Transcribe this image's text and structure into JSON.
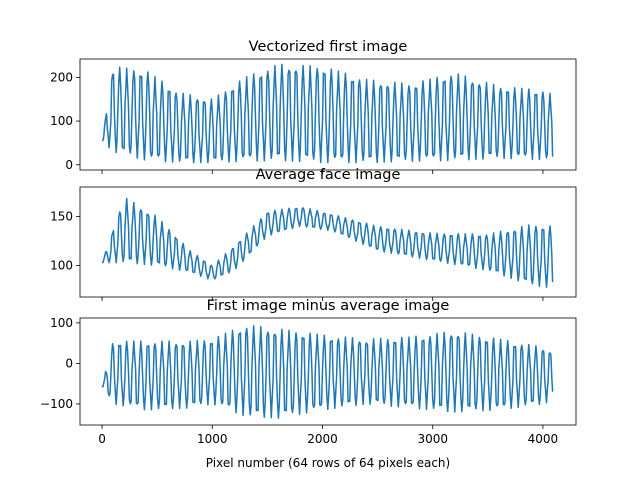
{
  "figure": {
    "xlabel": "Pixel number (64 rows of 64 pixels each)"
  },
  "chart_data": [
    {
      "type": "line",
      "title": "Vectorized first image",
      "xlabel": "",
      "ylabel": "",
      "xlim": [
        -200,
        4300
      ],
      "ylim": [
        -12,
        242
      ],
      "xticks": [
        0,
        1000,
        2000,
        3000,
        4000
      ],
      "yticks": [
        0,
        100,
        200
      ],
      "show_xticklabels": false,
      "grid": false,
      "color": "#1f77b4",
      "series": [
        {
          "x_start": 0,
          "x_end": 4095,
          "rows": 64,
          "period": 64,
          "min_env": {
            "x": [
              0,
              100,
              400,
              700,
              1000,
              1300,
              1600,
              2000,
              2400,
              2800,
              3200,
              3600,
              4000,
              4095
            ],
            "y": [
              55,
              30,
              10,
              5,
              5,
              8,
              10,
              5,
              5,
              8,
              10,
              15,
              12,
              8
            ]
          },
          "max_env": {
            "x": [
              0,
              100,
              400,
              700,
              1000,
              1300,
              1600,
              2000,
              2400,
              2800,
              3200,
              3600,
              4000,
              4095
            ],
            "y": [
              55,
              225,
              215,
              165,
              150,
              200,
              230,
              225,
              195,
              185,
              210,
              180,
              170,
              160
            ]
          }
        }
      ]
    },
    {
      "type": "line",
      "title": "Average face image",
      "xlabel": "",
      "ylabel": "",
      "xlim": [
        -200,
        4300
      ],
      "ylim": [
        68,
        180
      ],
      "xticks": [
        0,
        1000,
        2000,
        3000,
        4000
      ],
      "yticks": [
        100,
        150
      ],
      "show_xticklabels": false,
      "grid": false,
      "color": "#1f77b4",
      "series": [
        {
          "x_start": 0,
          "x_end": 4095,
          "rows": 64,
          "period": 64,
          "min_env": {
            "x": [
              0,
              200,
              500,
              800,
              1000,
              1200,
              1500,
              1800,
              2100,
              2500,
              3000,
              3500,
              3900,
              4095
            ],
            "y": [
              103,
              103,
              100,
              93,
              85,
              95,
              130,
              140,
              135,
              115,
              105,
              95,
              80,
              77
            ]
          },
          "max_env": {
            "x": [
              0,
              200,
              500,
              800,
              1000,
              1200,
              1500,
              1800,
              2100,
              2500,
              3000,
              3500,
              3900,
              4095
            ],
            "y": [
              103,
              170,
              150,
              115,
              100,
              120,
              155,
              160,
              152,
              140,
              133,
              132,
              142,
              140
            ]
          }
        }
      ]
    },
    {
      "type": "line",
      "title": "First image minus average image",
      "xlabel": "Pixel number (64 rows of 64 pixels each)",
      "ylabel": "",
      "xlim": [
        -200,
        4300
      ],
      "ylim": [
        -152,
        112
      ],
      "xticks": [
        0,
        1000,
        2000,
        3000,
        4000
      ],
      "yticks": [
        -100,
        0,
        100
      ],
      "show_xticklabels": true,
      "grid": false,
      "color": "#1f77b4",
      "series": [
        {
          "x_start": 0,
          "x_end": 4095,
          "rows": 64,
          "period": 64,
          "min_env": {
            "x": [
              0,
              100,
              400,
              800,
              1000,
              1300,
              1600,
              2000,
              2400,
              2800,
              3200,
              3600,
              4000,
              4095
            ],
            "y": [
              -55,
              -100,
              -115,
              -110,
              -100,
              -130,
              -135,
              -115,
              -100,
              -110,
              -120,
              -115,
              -100,
              -90
            ]
          },
          "max_env": {
            "x": [
              0,
              100,
              400,
              800,
              1000,
              1300,
              1600,
              2000,
              2400,
              2800,
              3200,
              3600,
              4000,
              4095
            ],
            "y": [
              -55,
              55,
              55,
              55,
              60,
              95,
              85,
              70,
              60,
              65,
              80,
              60,
              40,
              30
            ]
          }
        }
      ]
    }
  ]
}
